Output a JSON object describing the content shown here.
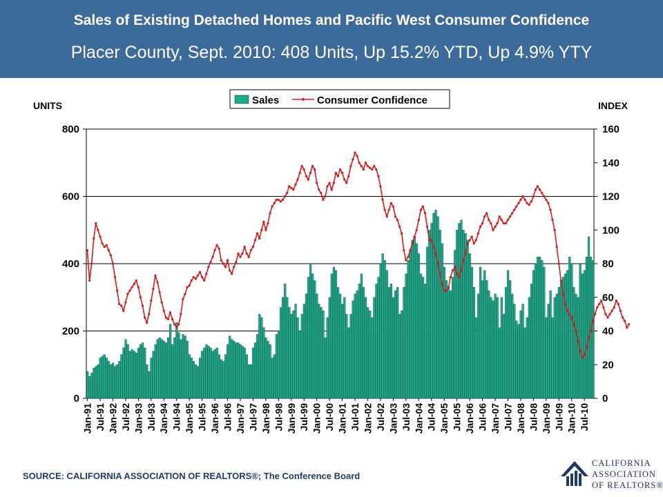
{
  "header": {
    "title": "Sales of Existing Detached Homes and Pacific West Consumer Confidence",
    "subtitle": "Placer County, Sept. 2010: 408 Units, Up 15.2% YTD, Up 4.9% YTY"
  },
  "footer": {
    "source": "SOURCE: CALIFORNIA ASSOCIATION OF REALTORS®;  The Conference Board",
    "logo_lines": [
      "CALIFORNIA",
      "ASSOCIATION",
      "OF REALTORS®"
    ]
  },
  "colors": {
    "header_bg": "#3d6b99",
    "bar": "#1fa88a",
    "line": "#d41a1a"
  },
  "chart_data": {
    "type": "bar+line",
    "left_axis_label": "UNITS",
    "right_axis_label": "INDEX",
    "left_ylim": [
      0,
      800
    ],
    "left_ticks": [
      0,
      200,
      400,
      600,
      800
    ],
    "right_ylim": [
      0,
      160
    ],
    "right_ticks": [
      0,
      20,
      40,
      60,
      80,
      100,
      120,
      140,
      160
    ],
    "grid": true,
    "legend_position": "top-center",
    "legend": [
      "Sales",
      "Consumer Confidence"
    ],
    "x_start": "Jan-91",
    "x_end": "Sep-10",
    "x_tick_labels": [
      "Jan-91",
      "Jul-91",
      "Jan-92",
      "Jul-92",
      "Jan-93",
      "Jul-93",
      "Jan-94",
      "Jul-94",
      "Jan-95",
      "Jul-95",
      "Jan-96",
      "Jul-96",
      "Jan-97",
      "Jul-97",
      "Jan-98",
      "Jul-98",
      "Jan-99",
      "Jul-99",
      "Jan-00",
      "Jul-00",
      "Jan-01",
      "Jul-01",
      "Jan-02",
      "Jul-02",
      "Jan-03",
      "Jul-03",
      "Jan-04",
      "Jul-04",
      "Jan-05",
      "Jul-05",
      "Jan-06",
      "Jul-06",
      "Jan-07",
      "Jul-07",
      "Jan-08",
      "Jul-08",
      "Jan-09",
      "Jul-09",
      "Jan-10",
      "Jul-10"
    ],
    "series": [
      {
        "name": "Sales",
        "axis": "left",
        "kind": "bar",
        "values": [
          80,
          65,
          75,
          90,
          95,
          100,
          120,
          125,
          130,
          120,
          110,
          100,
          105,
          95,
          100,
          110,
          130,
          150,
          175,
          160,
          140,
          145,
          140,
          135,
          150,
          160,
          165,
          150,
          100,
          80,
          120,
          140,
          160,
          175,
          180,
          175,
          170,
          165,
          180,
          220,
          160,
          180,
          225,
          195,
          175,
          190,
          185,
          170,
          130,
          120,
          110,
          100,
          95,
          120,
          140,
          150,
          160,
          155,
          150,
          140,
          145,
          150,
          130,
          115,
          110,
          130,
          160,
          185,
          175,
          170,
          165,
          165,
          160,
          155,
          150,
          130,
          100,
          100,
          150,
          165,
          190,
          250,
          240,
          210,
          180,
          170,
          160,
          120,
          130,
          190,
          200,
          270,
          300,
          340,
          300,
          270,
          250,
          260,
          280,
          240,
          200,
          250,
          280,
          310,
          360,
          400,
          370,
          350,
          310,
          280,
          270,
          260,
          180,
          240,
          300,
          370,
          390,
          380,
          330,
          310,
          280,
          300,
          250,
          210,
          250,
          290,
          310,
          320,
          340,
          370,
          330,
          300,
          270,
          260,
          240,
          300,
          340,
          360,
          400,
          430,
          410,
          380,
          330,
          340,
          300,
          320,
          330,
          250,
          260,
          330,
          370,
          410,
          440,
          470,
          480,
          460,
          430,
          370,
          360,
          340,
          450,
          500,
          520,
          550,
          560,
          540,
          500,
          460,
          390,
          350,
          330,
          320,
          360,
          440,
          500,
          520,
          530,
          500,
          490,
          470,
          430,
          390,
          330,
          240,
          310,
          390,
          350,
          380,
          350,
          320,
          300,
          290,
          310,
          300,
          210,
          300,
          250,
          330,
          380,
          350,
          310,
          280,
          230,
          220,
          260,
          280,
          210,
          240,
          300,
          340,
          380,
          400,
          420,
          420,
          410,
          390,
          240,
          280,
          320,
          240,
          300,
          310,
          330,
          350,
          360,
          370,
          380,
          420,
          400,
          330,
          310,
          300,
          400,
          370,
          380,
          420,
          480,
          420,
          410
        ]
      },
      {
        "name": "Consumer Confidence",
        "axis": "right",
        "kind": "line",
        "values": [
          88,
          70,
          80,
          95,
          104,
          100,
          96,
          92,
          90,
          91,
          88,
          85,
          80,
          72,
          64,
          56,
          55,
          52,
          57,
          62,
          64,
          66,
          68,
          70,
          66,
          60,
          55,
          48,
          45,
          50,
          58,
          65,
          73,
          69,
          63,
          57,
          52,
          48,
          47,
          51,
          47,
          44,
          42,
          44,
          50,
          59,
          62,
          66,
          67,
          70,
          72,
          71,
          73,
          75,
          72,
          70,
          74,
          78,
          81,
          84,
          88,
          91,
          89,
          82,
          80,
          78,
          82,
          76,
          74,
          78,
          81,
          86,
          84,
          86,
          90,
          86,
          84,
          88,
          90,
          94,
          98,
          95,
          100,
          105,
          100,
          104,
          110,
          114,
          116,
          118,
          118,
          117,
          118,
          120,
          122,
          126,
          125,
          124,
          127,
          130,
          134,
          138,
          136,
          132,
          130,
          134,
          138,
          136,
          128,
          124,
          122,
          118,
          120,
          126,
          128,
          124,
          128,
          134,
          132,
          136,
          134,
          130,
          128,
          132,
          138,
          142,
          146,
          144,
          140,
          138,
          136,
          140,
          138,
          137,
          136,
          138,
          136,
          132,
          126,
          118,
          112,
          108,
          112,
          116,
          114,
          108,
          106,
          102,
          98,
          88,
          82,
          84,
          88,
          92,
          96,
          100,
          106,
          112,
          114,
          110,
          102,
          94,
          94,
          90,
          86,
          80,
          74,
          68,
          64,
          64,
          66,
          72,
          76,
          78,
          74,
          72,
          76,
          82,
          86,
          92,
          94,
          96,
          92,
          94,
          98,
          102,
          104,
          108,
          110,
          106,
          104,
          100,
          102,
          104,
          108,
          106,
          104,
          104,
          106,
          108,
          110,
          112,
          114,
          116,
          118,
          120,
          118,
          116,
          115,
          117,
          120,
          124,
          126,
          124,
          122,
          120,
          118,
          116,
          112,
          106,
          100,
          90,
          80,
          70,
          62,
          56,
          52,
          50,
          48,
          44,
          40,
          34,
          28,
          24,
          26,
          30,
          36,
          40,
          46,
          50,
          54,
          56,
          58,
          54,
          50,
          48,
          50,
          52,
          54,
          58,
          56,
          52,
          48,
          46,
          42,
          44
        ]
      }
    ]
  }
}
